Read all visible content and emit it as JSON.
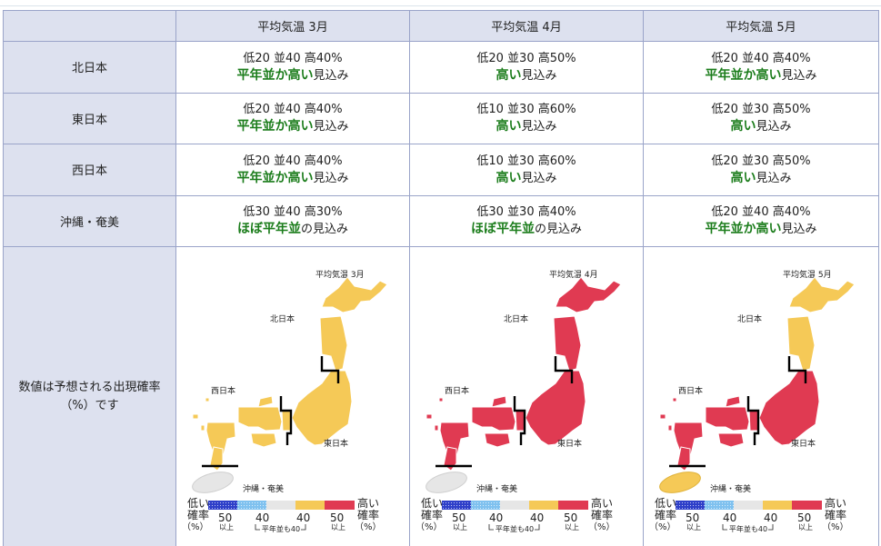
{
  "colors": {
    "high": "#e03a52",
    "normal_or_high": "#f5c957",
    "normal": "#e6e6e6",
    "low": "#2e3fc9",
    "low_light": "#7fc1ef",
    "outlook_text": "#1c7d1c",
    "header_bg": "#dde1ef"
  },
  "header": {
    "corner": "",
    "months": [
      "平均気温 3月",
      "平均気温 4月",
      "平均気温 5月"
    ]
  },
  "rows": [
    {
      "region": "北日本",
      "cells": [
        {
          "low": "低20",
          "normal": "並40",
          "high": "高40%",
          "outlook_bold": "平年並か高い",
          "outlook_rest": "見込み"
        },
        {
          "low": "低20",
          "normal": "並30",
          "high": "高50%",
          "outlook_bold": "高い",
          "outlook_rest": "見込み"
        },
        {
          "low": "低20",
          "normal": "並40",
          "high": "高40%",
          "outlook_bold": "平年並か高い",
          "outlook_rest": "見込み"
        }
      ]
    },
    {
      "region": "東日本",
      "cells": [
        {
          "low": "低20",
          "normal": "並40",
          "high": "高40%",
          "outlook_bold": "平年並か高い",
          "outlook_rest": "見込み"
        },
        {
          "low": "低10",
          "normal": "並30",
          "high": "高60%",
          "outlook_bold": "高い",
          "outlook_rest": "見込み"
        },
        {
          "low": "低20",
          "normal": "並30",
          "high": "高50%",
          "outlook_bold": "高い",
          "outlook_rest": "見込み"
        }
      ]
    },
    {
      "region": "西日本",
      "cells": [
        {
          "low": "低20",
          "normal": "並40",
          "high": "高40%",
          "outlook_bold": "平年並か高い",
          "outlook_rest": "見込み"
        },
        {
          "low": "低10",
          "normal": "並30",
          "high": "高60%",
          "outlook_bold": "高い",
          "outlook_rest": "見込み"
        },
        {
          "low": "低20",
          "normal": "並30",
          "high": "高50%",
          "outlook_bold": "高い",
          "outlook_rest": "見込み"
        }
      ]
    },
    {
      "region": "沖縄・奄美",
      "cells": [
        {
          "low": "低30",
          "normal": "並40",
          "high": "高30%",
          "outlook_bold": "ほぼ平年並",
          "outlook_rest": "の見込み"
        },
        {
          "low": "低30",
          "normal": "並30",
          "high": "高40%",
          "outlook_bold": "ほぼ平年並",
          "outlook_rest": "の見込み"
        },
        {
          "low": "低20",
          "normal": "並40",
          "high": "高40%",
          "outlook_bold": "平年並か高い",
          "outlook_rest": "見込み"
        }
      ]
    }
  ],
  "map_row": {
    "label_line1": "数値は予想される出現確率",
    "label_line2": "（%）です",
    "maps": [
      {
        "title": "平均気温 3月",
        "north": "normal_or_high",
        "east": "normal_or_high",
        "west": "normal_or_high",
        "okinawa": "normal"
      },
      {
        "title": "平均気温 4月",
        "north": "high",
        "east": "high",
        "west": "high",
        "okinawa": "normal"
      },
      {
        "title": "平均気温 5月",
        "north": "normal_or_high",
        "east": "high",
        "west": "high",
        "okinawa": "normal_or_high"
      }
    ],
    "region_labels": {
      "north": "北日本",
      "east": "東日本",
      "west": "西日本",
      "okinawa": "沖縄・奄美"
    },
    "legend": {
      "low_word": "低い",
      "high_word": "高い",
      "prob_word": "確率",
      "percent_word": "（%）",
      "v50": "50",
      "v40": "40",
      "above": "以上",
      "normal_note": "平年並も40"
    }
  }
}
